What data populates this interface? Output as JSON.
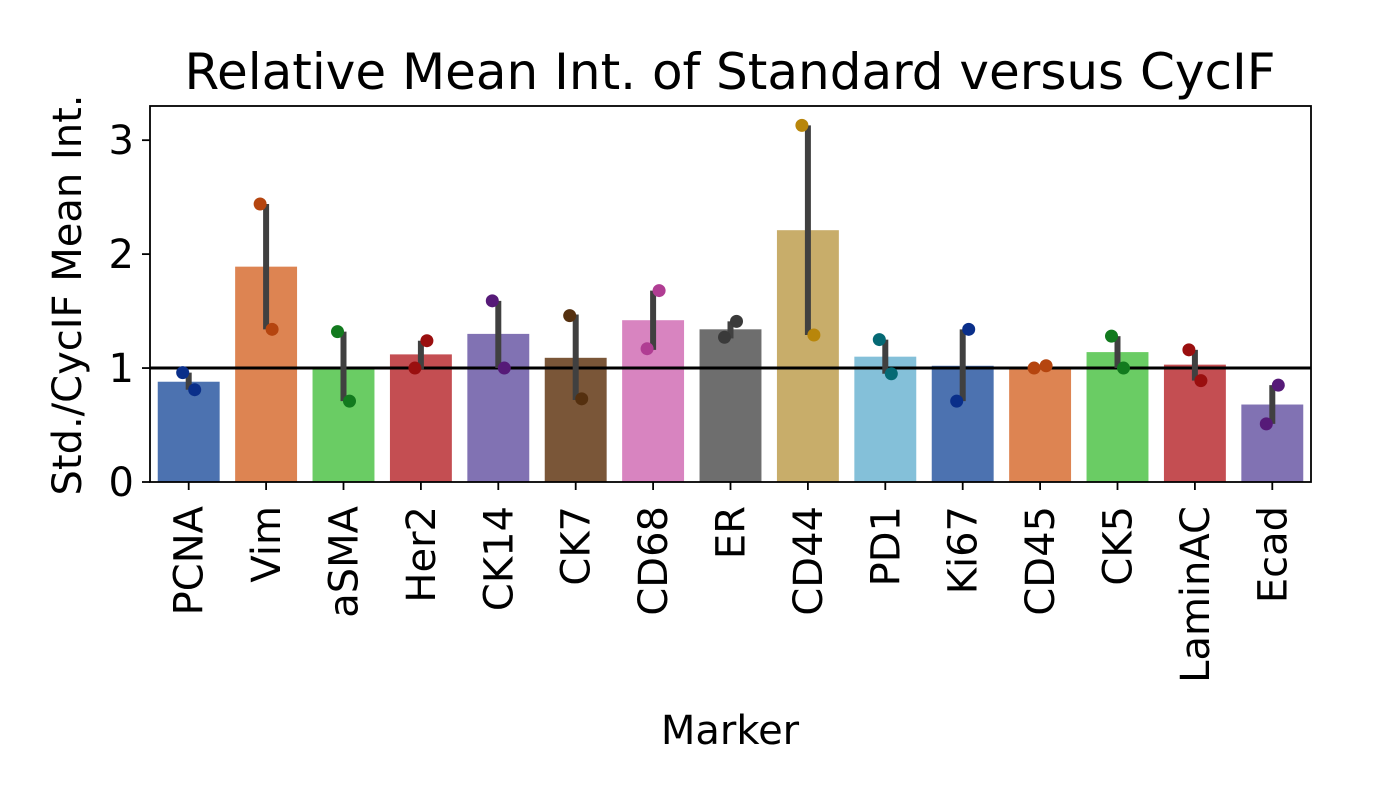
{
  "chart_data": {
    "type": "bar",
    "title": "Relative Mean Int. of Standard versus CycIF",
    "xlabel": "Marker",
    "ylabel": "Std./CycIF Mean Int.",
    "ylim": [
      0,
      3.3
    ],
    "yticks": [
      0,
      1,
      2,
      3
    ],
    "reference_line": 1,
    "categories": [
      "PCNA",
      "Vim",
      "aSMA",
      "Her2",
      "CK14",
      "CK7",
      "CD68",
      "ER",
      "CD44",
      "PD1",
      "Ki67",
      "CD45",
      "CK5",
      "LaminAC",
      "Ecad"
    ],
    "values": [
      0.88,
      1.89,
      1.01,
      1.12,
      1.3,
      1.09,
      1.42,
      1.34,
      2.21,
      1.1,
      1.02,
      1.01,
      1.14,
      1.03,
      0.68
    ],
    "error_low": [
      0.81,
      1.34,
      0.71,
      0.99,
      1.0,
      0.72,
      1.16,
      1.26,
      1.29,
      0.95,
      0.71,
      1.0,
      1.0,
      0.89,
      0.51
    ],
    "error_high": [
      0.96,
      2.44,
      1.32,
      1.24,
      1.59,
      1.47,
      1.68,
      1.41,
      3.13,
      1.25,
      1.34,
      1.02,
      1.28,
      1.16,
      0.85
    ],
    "points": [
      [
        0.96,
        0.81
      ],
      [
        2.44,
        1.34
      ],
      [
        1.32,
        0.71
      ],
      [
        1.0,
        1.24
      ],
      [
        1.59,
        1.0
      ],
      [
        1.46,
        0.73
      ],
      [
        1.17,
        1.68
      ],
      [
        1.27,
        1.41
      ],
      [
        3.13,
        1.29
      ],
      [
        1.25,
        0.95
      ],
      [
        0.71,
        1.34
      ],
      [
        1.0,
        1.02
      ],
      [
        1.28,
        1.0
      ],
      [
        1.16,
        0.89
      ],
      [
        0.51,
        0.85
      ]
    ],
    "bar_colors": [
      "#4c72b0",
      "#dd8452",
      "#6acc64",
      "#c44e52",
      "#8172b3",
      "#7a5638",
      "#d884c0",
      "#6e6e6e",
      "#c8ad6a",
      "#84c0d9",
      "#4c72b0",
      "#dd8452",
      "#6acc64",
      "#c44e52",
      "#8172b3"
    ],
    "point_colors": [
      "#0a2f8a",
      "#b5450f",
      "#127a1e",
      "#9a0f0f",
      "#561a78",
      "#55300f",
      "#b03d93",
      "#3a3a3a",
      "#b8860b",
      "#056974",
      "#0a2f8a",
      "#b5450f",
      "#127a1e",
      "#9a0f0f",
      "#561a78"
    ],
    "grid": false,
    "legend": "none"
  }
}
